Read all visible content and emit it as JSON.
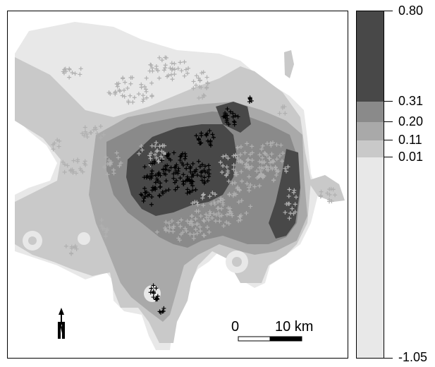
{
  "legend": {
    "ticks": [
      "0.80",
      "0.31",
      "0.20",
      "0.11",
      "0.01",
      "-1.05"
    ],
    "colors": [
      "#484848",
      "#8a8a8a",
      "#a9a9a9",
      "#c9c9c9",
      "#e8e8e8"
    ]
  },
  "scale_bar": {
    "start_label": "0",
    "end_label": "10 km"
  },
  "north_arrow": {
    "label": "N"
  },
  "markers": {
    "light_color": "#b0b0b0",
    "dark_color": "#000000"
  }
}
